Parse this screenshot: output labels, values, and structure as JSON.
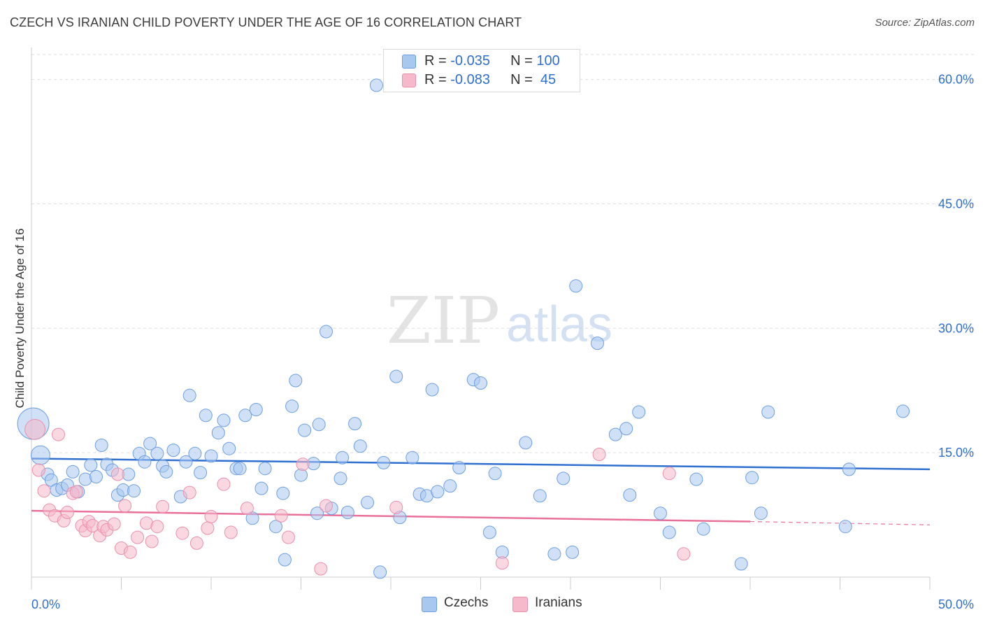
{
  "title": "CZECH VS IRANIAN CHILD POVERTY UNDER THE AGE OF 16 CORRELATION CHART",
  "source": "Source: ZipAtlas.com",
  "watermark": {
    "zip": "ZIP",
    "atlas": "atlas"
  },
  "legend": [
    {
      "r_label": "R = ",
      "r_value": "-0.035",
      "n_label": "N = ",
      "n_value": "100",
      "color": "#a9c8f0"
    },
    {
      "r_label": "R = ",
      "r_value": "-0.083",
      "n_label": "N = ",
      "n_value": " 45",
      "color": "#f6b8cb"
    }
  ],
  "bottom_legend": [
    {
      "label": "Czechs",
      "color": "#a9c8f0"
    },
    {
      "label": "Iranians",
      "color": "#f6b8cb"
    }
  ],
  "colors": {
    "czech_fill": "#a9c8f0",
    "czech_stroke": "#6d9fe0",
    "czech_line": "#2f6fd0",
    "iran_fill": "#f6b8cb",
    "iran_stroke": "#ec8fad",
    "iran_line": "#e8709a",
    "grid": "#dddddd",
    "tick_text": "#2f6fd0"
  },
  "chart_data": {
    "type": "scatter",
    "title": "CZECH VS IRANIAN CHILD POVERTY UNDER THE AGE OF 16 CORRELATION CHART",
    "xlabel": "",
    "ylabel": "Child Poverty Under the Age of 16",
    "xlim": [
      0,
      50
    ],
    "ylim": [
      0,
      63
    ],
    "x_tick_labels": [
      "0.0%",
      "50.0%"
    ],
    "y_ticks": [
      15,
      30,
      45,
      60
    ],
    "y_tick_labels": [
      "15.0%",
      "30.0%",
      "45.0%",
      "60.0%"
    ],
    "grid": "horizontal dashed",
    "series": [
      {
        "name": "Czechs",
        "r": -0.035,
        "n": 100,
        "trend": {
          "x": [
            0,
            50
          ],
          "y": [
            14.3,
            13.0
          ]
        },
        "points": [
          [
            0.1,
            18.5,
            2.5
          ],
          [
            0.5,
            14.7,
            1.5
          ],
          [
            0.9,
            12.4,
            1
          ],
          [
            1.1,
            11.7,
            1
          ],
          [
            1.4,
            10.5,
            1
          ],
          [
            1.7,
            10.7,
            1
          ],
          [
            2.0,
            11.1,
            1
          ],
          [
            2.3,
            12.7,
            1
          ],
          [
            2.6,
            10.3,
            1
          ],
          [
            3.0,
            11.8,
            1
          ],
          [
            3.3,
            13.5,
            1
          ],
          [
            3.6,
            12.1,
            1
          ],
          [
            3.9,
            15.9,
            1
          ],
          [
            4.2,
            13.6,
            1
          ],
          [
            4.5,
            12.9,
            1
          ],
          [
            4.8,
            9.9,
            1
          ],
          [
            5.1,
            10.5,
            1
          ],
          [
            5.4,
            12.4,
            1
          ],
          [
            5.7,
            10.4,
            1
          ],
          [
            6.0,
            14.9,
            1
          ],
          [
            6.3,
            13.9,
            1
          ],
          [
            6.6,
            16.1,
            1
          ],
          [
            7.0,
            14.9,
            1
          ],
          [
            7.3,
            13.4,
            1
          ],
          [
            7.5,
            12.7,
            1
          ],
          [
            7.9,
            15.3,
            1
          ],
          [
            8.3,
            9.7,
            1
          ],
          [
            8.6,
            13.9,
            1
          ],
          [
            8.8,
            21.9,
            1
          ],
          [
            9.1,
            14.9,
            1
          ],
          [
            9.4,
            12.6,
            1
          ],
          [
            9.7,
            19.5,
            1
          ],
          [
            10.0,
            14.6,
            1
          ],
          [
            10.4,
            17.4,
            1
          ],
          [
            10.7,
            18.9,
            1
          ],
          [
            11.0,
            15.5,
            1
          ],
          [
            11.4,
            13.1,
            1
          ],
          [
            11.6,
            13.1,
            1
          ],
          [
            11.9,
            19.5,
            1
          ],
          [
            12.3,
            7.1,
            1
          ],
          [
            12.5,
            20.2,
            1
          ],
          [
            12.8,
            10.7,
            1
          ],
          [
            13.0,
            13.1,
            1
          ],
          [
            13.6,
            6.1,
            1
          ],
          [
            14.0,
            10.1,
            1
          ],
          [
            14.1,
            2.1,
            1
          ],
          [
            14.5,
            20.6,
            1
          ],
          [
            14.7,
            23.7,
            1
          ],
          [
            15.0,
            12.3,
            1
          ],
          [
            15.2,
            17.7,
            1
          ],
          [
            15.7,
            13.7,
            1
          ],
          [
            15.9,
            7.7,
            1
          ],
          [
            16.0,
            18.4,
            1
          ],
          [
            16.4,
            29.6,
            1
          ],
          [
            16.7,
            8.3,
            1
          ],
          [
            17.2,
            11.9,
            1
          ],
          [
            17.3,
            14.4,
            1
          ],
          [
            17.6,
            7.8,
            1
          ],
          [
            18.0,
            18.5,
            1
          ],
          [
            18.3,
            15.8,
            1
          ],
          [
            18.7,
            9.0,
            1
          ],
          [
            19.2,
            59.3,
            1
          ],
          [
            19.4,
            0.6,
            1
          ],
          [
            19.6,
            13.8,
            1
          ],
          [
            20.3,
            24.2,
            1
          ],
          [
            20.5,
            7.2,
            1
          ],
          [
            21.2,
            14.4,
            1
          ],
          [
            21.6,
            10.0,
            1
          ],
          [
            22.0,
            9.8,
            1
          ],
          [
            22.3,
            22.6,
            1
          ],
          [
            22.6,
            10.3,
            1
          ],
          [
            23.3,
            11.0,
            1
          ],
          [
            23.8,
            13.2,
            1
          ],
          [
            24.6,
            23.8,
            1
          ],
          [
            25.0,
            23.4,
            1
          ],
          [
            25.5,
            5.4,
            1
          ],
          [
            25.8,
            12.5,
            1
          ],
          [
            26.2,
            3.0,
            1
          ],
          [
            27.5,
            16.2,
            1
          ],
          [
            28.3,
            9.8,
            1
          ],
          [
            29.1,
            2.8,
            1
          ],
          [
            29.6,
            11.9,
            1
          ],
          [
            30.1,
            3.0,
            1
          ],
          [
            30.3,
            35.1,
            1
          ],
          [
            31.5,
            28.2,
            1
          ],
          [
            32.5,
            17.2,
            1
          ],
          [
            33.1,
            17.9,
            1
          ],
          [
            33.3,
            9.9,
            1
          ],
          [
            33.8,
            19.9,
            1
          ],
          [
            35.0,
            7.7,
            1
          ],
          [
            35.5,
            5.4,
            1
          ],
          [
            37.0,
            11.8,
            1
          ],
          [
            37.4,
            5.8,
            1
          ],
          [
            39.5,
            1.6,
            1
          ],
          [
            40.1,
            12.0,
            1
          ],
          [
            40.6,
            7.7,
            1
          ],
          [
            41.0,
            19.9,
            1
          ],
          [
            45.3,
            6.1,
            1
          ],
          [
            45.5,
            13.0,
            1
          ],
          [
            48.5,
            20.0,
            1
          ]
        ]
      },
      {
        "name": "Iranians",
        "r": -0.083,
        "n": 45,
        "trend": {
          "x": [
            0,
            40
          ],
          "y": [
            8.0,
            6.7
          ]
        },
        "trend_dashed": {
          "x": [
            40,
            50
          ],
          "y": [
            6.7,
            6.3
          ]
        },
        "points": [
          [
            0.2,
            17.8,
            1.6
          ],
          [
            0.4,
            12.9,
            1
          ],
          [
            0.7,
            10.4,
            1
          ],
          [
            1.0,
            8.1,
            1
          ],
          [
            1.3,
            7.4,
            1
          ],
          [
            1.5,
            17.2,
            1
          ],
          [
            1.8,
            6.8,
            1
          ],
          [
            2.0,
            7.8,
            1
          ],
          [
            2.3,
            10.1,
            1
          ],
          [
            2.5,
            10.3,
            1
          ],
          [
            2.8,
            6.2,
            1
          ],
          [
            3.0,
            5.6,
            1
          ],
          [
            3.2,
            6.7,
            1
          ],
          [
            3.4,
            6.2,
            1
          ],
          [
            3.8,
            5.0,
            1
          ],
          [
            4.0,
            6.1,
            1
          ],
          [
            4.2,
            5.7,
            1
          ],
          [
            4.6,
            6.4,
            1
          ],
          [
            4.8,
            12.4,
            1
          ],
          [
            5.0,
            3.5,
            1
          ],
          [
            5.2,
            8.6,
            1
          ],
          [
            5.5,
            3.0,
            1
          ],
          [
            5.9,
            4.8,
            1
          ],
          [
            6.4,
            6.5,
            1
          ],
          [
            6.7,
            4.3,
            1
          ],
          [
            7.0,
            6.1,
            1
          ],
          [
            7.3,
            8.5,
            1
          ],
          [
            8.4,
            5.3,
            1
          ],
          [
            8.8,
            10.2,
            1
          ],
          [
            9.2,
            4.1,
            1
          ],
          [
            9.8,
            5.9,
            1
          ],
          [
            10.0,
            7.3,
            1
          ],
          [
            10.7,
            11.2,
            1
          ],
          [
            11.1,
            5.4,
            1
          ],
          [
            12.0,
            8.3,
            1
          ],
          [
            13.9,
            7.4,
            1
          ],
          [
            14.3,
            4.8,
            1
          ],
          [
            15.1,
            13.6,
            1
          ],
          [
            16.1,
            1.0,
            1
          ],
          [
            16.4,
            8.6,
            1
          ],
          [
            20.3,
            8.4,
            1
          ],
          [
            26.2,
            1.7,
            1
          ],
          [
            31.6,
            14.8,
            1
          ],
          [
            35.5,
            12.5,
            1
          ],
          [
            36.3,
            2.8,
            1
          ]
        ]
      }
    ]
  }
}
